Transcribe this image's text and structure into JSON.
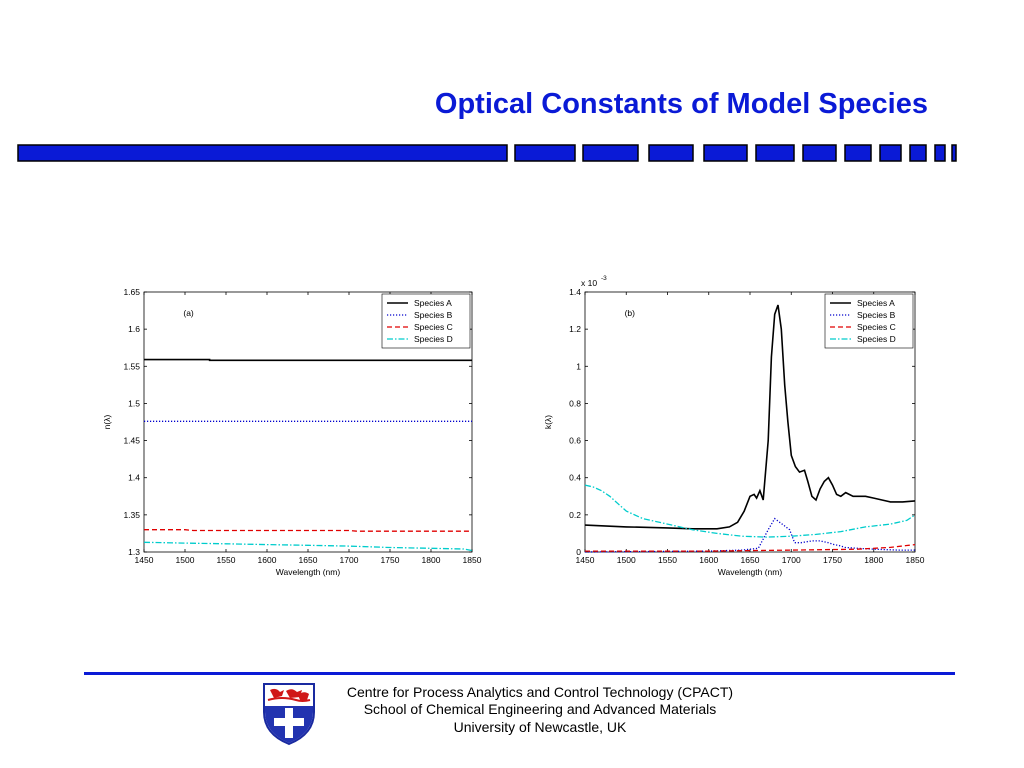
{
  "slide": {
    "title": "Optical Constants of Model Species"
  },
  "chart_data": [
    {
      "type": "line",
      "annotation": "(a)",
      "xlabel": "Wavelength (nm)",
      "ylabel": "n(λ)",
      "xlim": [
        1450,
        1850
      ],
      "ylim": [
        1.3,
        1.65
      ],
      "xticks": [
        1450,
        1500,
        1550,
        1600,
        1650,
        1700,
        1750,
        1800,
        1850
      ],
      "yticks": [
        1.3,
        1.35,
        1.4,
        1.45,
        1.5,
        1.55,
        1.6,
        1.65
      ],
      "ytick_labels": [
        "1.3",
        "1.35",
        "1.4",
        "1.45",
        "1.5",
        "1.55",
        "1.6",
        "1.65"
      ],
      "legend_position": "top-right",
      "grid": false,
      "series": [
        {
          "name": "Species A",
          "color": "#000000",
          "style": "solid",
          "points": [
            [
              1450,
              1.559
            ],
            [
              1530,
              1.559
            ],
            [
              1530,
              1.558
            ],
            [
              1850,
              1.558
            ]
          ]
        },
        {
          "name": "Species B",
          "color": "#0000cc",
          "style": "dotted",
          "points": [
            [
              1450,
              1.476
            ],
            [
              1850,
              1.476
            ]
          ]
        },
        {
          "name": "Species C",
          "color": "#e00000",
          "style": "dashed",
          "points": [
            [
              1450,
              1.33
            ],
            [
              1500,
              1.33
            ],
            [
              1510,
              1.329
            ],
            [
              1700,
              1.329
            ],
            [
              1710,
              1.328
            ],
            [
              1850,
              1.328
            ]
          ]
        },
        {
          "name": "Species D",
          "color": "#00cccc",
          "style": "dashdot",
          "points": [
            [
              1450,
              1.313
            ],
            [
              1500,
              1.312
            ],
            [
              1550,
              1.311
            ],
            [
              1600,
              1.31
            ],
            [
              1650,
              1.309
            ],
            [
              1700,
              1.308
            ],
            [
              1750,
              1.306
            ],
            [
              1800,
              1.305
            ],
            [
              1840,
              1.304
            ],
            [
              1850,
              1.302
            ]
          ]
        }
      ]
    },
    {
      "type": "line",
      "annotation": "(b)",
      "xlabel": "Wavelength (nm)",
      "ylabel": "k(λ)",
      "exponent_label": "x 10",
      "exponent_power": "-3",
      "xlim": [
        1450,
        1850
      ],
      "ylim": [
        0,
        1.4
      ],
      "xticks": [
        1450,
        1500,
        1550,
        1600,
        1650,
        1700,
        1750,
        1800,
        1850
      ],
      "yticks": [
        0,
        0.2,
        0.4,
        0.6,
        0.8,
        1,
        1.2,
        1.4
      ],
      "ytick_labels": [
        "0",
        "0.2",
        "0.4",
        "0.6",
        "0.8",
        "1",
        "1.2",
        "1.4"
      ],
      "legend_position": "top-right",
      "grid": false,
      "series": [
        {
          "name": "Species A",
          "color": "#000000",
          "style": "solid",
          "points": [
            [
              1450,
              0.145
            ],
            [
              1500,
              0.135
            ],
            [
              1550,
              0.13
            ],
            [
              1580,
              0.125
            ],
            [
              1610,
              0.125
            ],
            [
              1625,
              0.135
            ],
            [
              1635,
              0.16
            ],
            [
              1643,
              0.22
            ],
            [
              1650,
              0.3
            ],
            [
              1655,
              0.31
            ],
            [
              1658,
              0.29
            ],
            [
              1662,
              0.33
            ],
            [
              1666,
              0.28
            ],
            [
              1672,
              0.6
            ],
            [
              1676,
              1.05
            ],
            [
              1680,
              1.28
            ],
            [
              1684,
              1.33
            ],
            [
              1688,
              1.2
            ],
            [
              1692,
              0.9
            ],
            [
              1696,
              0.7
            ],
            [
              1700,
              0.52
            ],
            [
              1705,
              0.46
            ],
            [
              1710,
              0.43
            ],
            [
              1716,
              0.44
            ],
            [
              1720,
              0.38
            ],
            [
              1725,
              0.3
            ],
            [
              1730,
              0.28
            ],
            [
              1735,
              0.34
            ],
            [
              1740,
              0.38
            ],
            [
              1745,
              0.4
            ],
            [
              1750,
              0.36
            ],
            [
              1755,
              0.31
            ],
            [
              1760,
              0.3
            ],
            [
              1766,
              0.32
            ],
            [
              1775,
              0.3
            ],
            [
              1790,
              0.3
            ],
            [
              1800,
              0.29
            ],
            [
              1810,
              0.28
            ],
            [
              1820,
              0.27
            ],
            [
              1835,
              0.27
            ],
            [
              1850,
              0.275
            ]
          ]
        },
        {
          "name": "Species B",
          "color": "#0000cc",
          "style": "dotted",
          "points": [
            [
              1450,
              0.0
            ],
            [
              1600,
              0.005
            ],
            [
              1640,
              0.01
            ],
            [
              1660,
              0.02
            ],
            [
              1672,
              0.12
            ],
            [
              1680,
              0.18
            ],
            [
              1686,
              0.16
            ],
            [
              1692,
              0.14
            ],
            [
              1698,
              0.12
            ],
            [
              1704,
              0.05
            ],
            [
              1712,
              0.05
            ],
            [
              1725,
              0.06
            ],
            [
              1735,
              0.06
            ],
            [
              1745,
              0.05
            ],
            [
              1752,
              0.04
            ],
            [
              1758,
              0.035
            ],
            [
              1765,
              0.025
            ],
            [
              1780,
              0.02
            ],
            [
              1800,
              0.015
            ],
            [
              1830,
              0.01
            ],
            [
              1850,
              0.01
            ]
          ]
        },
        {
          "name": "Species C",
          "color": "#e00000",
          "style": "dashed",
          "points": [
            [
              1450,
              0.005
            ],
            [
              1600,
              0.005
            ],
            [
              1700,
              0.01
            ],
            [
              1780,
              0.015
            ],
            [
              1820,
              0.025
            ],
            [
              1840,
              0.035
            ],
            [
              1850,
              0.04
            ]
          ]
        },
        {
          "name": "Species D",
          "color": "#00cccc",
          "style": "dashdot",
          "points": [
            [
              1450,
              0.36
            ],
            [
              1460,
              0.35
            ],
            [
              1470,
              0.33
            ],
            [
              1480,
              0.3
            ],
            [
              1490,
              0.26
            ],
            [
              1500,
              0.22
            ],
            [
              1520,
              0.18
            ],
            [
              1550,
              0.15
            ],
            [
              1580,
              0.12
            ],
            [
              1610,
              0.1
            ],
            [
              1640,
              0.085
            ],
            [
              1670,
              0.08
            ],
            [
              1700,
              0.085
            ],
            [
              1730,
              0.095
            ],
            [
              1760,
              0.11
            ],
            [
              1790,
              0.135
            ],
            [
              1820,
              0.15
            ],
            [
              1840,
              0.17
            ],
            [
              1850,
              0.2
            ]
          ]
        }
      ]
    }
  ],
  "footer": {
    "line1": "Centre for Process Analytics and Control Technology  (CPACT)",
    "line2": "School of Chemical Engineering and Advanced Materials",
    "line3": "University of Newcastle, UK"
  }
}
